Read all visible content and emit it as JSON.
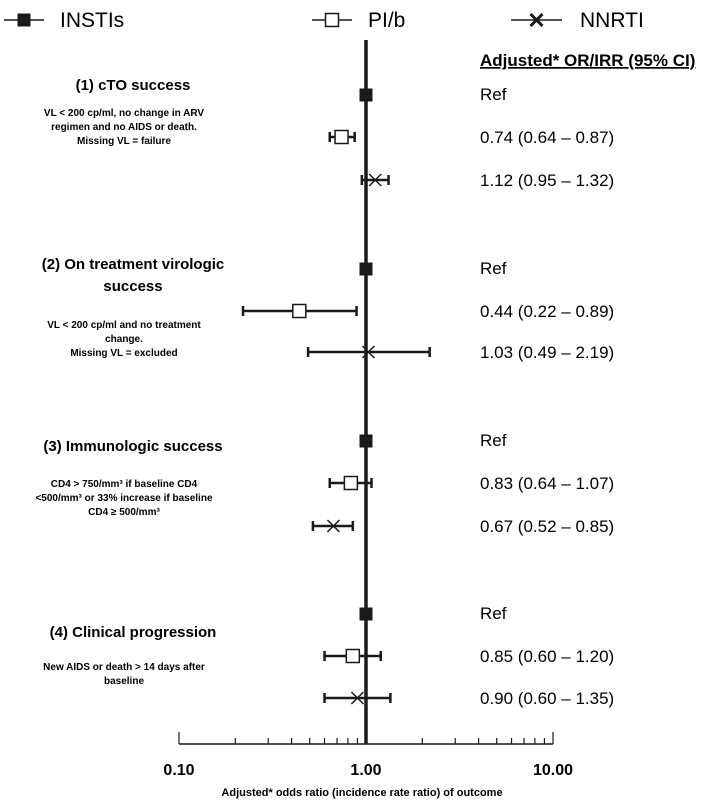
{
  "legend": [
    {
      "label": "INSTIs",
      "marker": "filled-square"
    },
    {
      "label": "PI/b",
      "marker": "open-square"
    },
    {
      "label": "NNRTI",
      "marker": "x"
    }
  ],
  "header": "Adjusted* OR/IRR (95% CI)",
  "chart_data": {
    "type": "forest",
    "x_scale": "log",
    "xlim": [
      0.1,
      10
    ],
    "reference_line": 1.0,
    "x_ticks": [
      "0.10",
      "1.00",
      "10.00"
    ],
    "xlabel": "Adjusted* odds ratio (incidence rate ratio) of outcome",
    "series": [
      {
        "name": "INSTIs",
        "marker": "filled-square"
      },
      {
        "name": "PI/b",
        "marker": "open-square"
      },
      {
        "name": "NNRTI",
        "marker": "x"
      }
    ],
    "outcomes": [
      {
        "title": [
          "(1) cTO success"
        ],
        "description": [
          "VL < 200 cp/ml, no change in ARV",
          "regimen and no AIDS or death.",
          "Missing VL = failure"
        ],
        "rows": [
          {
            "series": "INSTIs",
            "estimate": 1.0,
            "lo": null,
            "hi": null,
            "label": "Ref"
          },
          {
            "series": "PI/b",
            "estimate": 0.74,
            "lo": 0.64,
            "hi": 0.87,
            "label": "0.74 (0.64 – 0.87)"
          },
          {
            "series": "NNRTI",
            "estimate": 1.12,
            "lo": 0.95,
            "hi": 1.32,
            "label": "1.12 (0.95 – 1.32)"
          }
        ]
      },
      {
        "title": [
          "(2) On treatment virologic",
          "success"
        ],
        "description": [
          "VL < 200 cp/ml and no treatment",
          "change.",
          "Missing VL = excluded"
        ],
        "rows": [
          {
            "series": "INSTIs",
            "estimate": 1.0,
            "lo": null,
            "hi": null,
            "label": "Ref"
          },
          {
            "series": "PI/b",
            "estimate": 0.44,
            "lo": 0.22,
            "hi": 0.89,
            "label": "0.44 (0.22 – 0.89)"
          },
          {
            "series": "NNRTI",
            "estimate": 1.03,
            "lo": 0.49,
            "hi": 2.19,
            "label": "1.03 (0.49 – 2.19)"
          }
        ]
      },
      {
        "title": [
          "(3) Immunologic success"
        ],
        "description": [
          "CD4 > 750/mm³ if baseline CD4",
          "<500/mm³ or 33% increase if baseline",
          "CD4 ≥ 500/mm³"
        ],
        "rows": [
          {
            "series": "INSTIs",
            "estimate": 1.0,
            "lo": null,
            "hi": null,
            "label": "Ref"
          },
          {
            "series": "PI/b",
            "estimate": 0.83,
            "lo": 0.64,
            "hi": 1.07,
            "label": "0.83 (0.64 – 1.07)"
          },
          {
            "series": "NNRTI",
            "estimate": 0.67,
            "lo": 0.52,
            "hi": 0.85,
            "label": "0.67 (0.52 – 0.85)"
          }
        ]
      },
      {
        "title": [
          "(4) Clinical progression"
        ],
        "description": [
          "New AIDS or death > 14 days after",
          "baseline"
        ],
        "rows": [
          {
            "series": "INSTIs",
            "estimate": 1.0,
            "lo": null,
            "hi": null,
            "label": "Ref"
          },
          {
            "series": "PI/b",
            "estimate": 0.85,
            "lo": 0.6,
            "hi": 1.2,
            "label": "0.85 (0.60 – 1.20)"
          },
          {
            "series": "NNRTI",
            "estimate": 0.9,
            "lo": 0.6,
            "hi": 1.35,
            "label": "0.90 (0.60 – 1.35)"
          }
        ]
      }
    ]
  }
}
